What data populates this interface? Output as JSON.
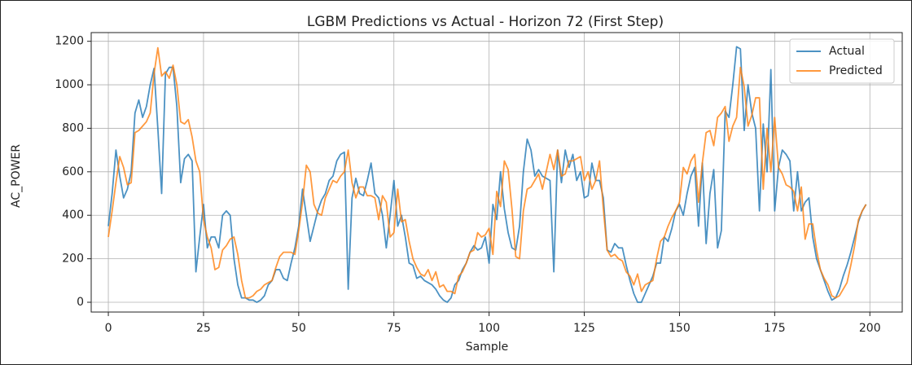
{
  "chart_data": {
    "type": "line",
    "title": "LGBM Predictions vs Actual - Horizon 72 (First Step)",
    "x_label": "Sample",
    "y_label": "AC_POWER",
    "x": [
      0,
      1,
      2,
      3,
      4,
      5,
      6,
      7,
      8,
      9,
      10,
      11,
      12,
      13,
      14,
      15,
      16,
      17,
      18,
      19,
      20,
      21,
      22,
      23,
      24,
      25,
      26,
      27,
      28,
      29,
      30,
      31,
      32,
      33,
      34,
      35,
      36,
      37,
      38,
      39,
      40,
      41,
      42,
      43,
      44,
      45,
      46,
      47,
      48,
      49,
      50,
      51,
      52,
      53,
      54,
      55,
      56,
      57,
      58,
      59,
      60,
      61,
      62,
      63,
      64,
      65,
      66,
      67,
      68,
      69,
      70,
      71,
      72,
      73,
      74,
      75,
      76,
      77,
      78,
      79,
      80,
      81,
      82,
      83,
      84,
      85,
      86,
      87,
      88,
      89,
      90,
      91,
      92,
      93,
      94,
      95,
      96,
      97,
      98,
      99,
      100,
      101,
      102,
      103,
      104,
      105,
      106,
      107,
      108,
      109,
      110,
      111,
      112,
      113,
      114,
      115,
      116,
      117,
      118,
      119,
      120,
      121,
      122,
      123,
      124,
      125,
      126,
      127,
      128,
      129,
      130,
      131,
      132,
      133,
      134,
      135,
      136,
      137,
      138,
      139,
      140,
      141,
      142,
      143,
      144,
      145,
      146,
      147,
      148,
      149,
      150,
      151,
      152,
      153,
      154,
      155,
      156,
      157,
      158,
      159,
      160,
      161,
      162,
      163,
      164,
      165,
      166,
      167,
      168,
      169,
      170,
      171,
      172,
      173,
      174,
      175,
      176,
      177,
      178,
      179,
      180,
      181,
      182,
      183,
      184,
      185,
      186,
      187,
      188,
      189,
      190,
      191,
      192,
      193,
      194,
      195,
      196,
      197,
      198,
      199
    ],
    "series": [
      {
        "name": "Actual",
        "color": "#1f77b4",
        "values": [
          350,
          500,
          700,
          580,
          480,
          520,
          600,
          870,
          930,
          850,
          900,
          1000,
          1075,
          800,
          500,
          1050,
          1080,
          1080,
          900,
          550,
          660,
          680,
          650,
          140,
          300,
          450,
          250,
          300,
          300,
          250,
          400,
          420,
          400,
          200,
          80,
          20,
          20,
          10,
          10,
          0,
          10,
          30,
          80,
          100,
          150,
          150,
          110,
          100,
          180,
          250,
          350,
          520,
          400,
          280,
          350,
          420,
          470,
          500,
          560,
          580,
          650,
          680,
          690,
          60,
          480,
          570,
          500,
          490,
          560,
          640,
          500,
          480,
          400,
          250,
          400,
          560,
          350,
          400,
          300,
          180,
          170,
          110,
          120,
          100,
          90,
          80,
          60,
          30,
          10,
          0,
          20,
          80,
          100,
          150,
          180,
          230,
          260,
          240,
          250,
          300,
          180,
          450,
          380,
          600,
          430,
          320,
          250,
          240,
          350,
          600,
          750,
          700,
          580,
          610,
          580,
          570,
          560,
          140,
          700,
          550,
          700,
          620,
          680,
          560,
          600,
          480,
          490,
          640,
          560,
          560,
          480,
          240,
          230,
          270,
          250,
          250,
          170,
          100,
          40,
          0,
          0,
          40,
          80,
          120,
          180,
          180,
          300,
          280,
          340,
          420,
          450,
          400,
          500,
          580,
          620,
          350,
          640,
          270,
          500,
          610,
          250,
          330,
          880,
          850,
          1000,
          1175,
          1165,
          790,
          1000,
          870,
          800,
          420,
          820,
          600,
          1070,
          420,
          620,
          700,
          680,
          650,
          420,
          600,
          420,
          460,
          480,
          300,
          200,
          150,
          100,
          50,
          10,
          20,
          60,
          120,
          170,
          230,
          300,
          370,
          420,
          450
        ]
      },
      {
        "name": "Predicted",
        "color": "#ff7f0e",
        "values": [
          300,
          420,
          550,
          670,
          620,
          540,
          550,
          780,
          790,
          810,
          830,
          870,
          1050,
          1170,
          1040,
          1060,
          1030,
          1090,
          1000,
          830,
          820,
          840,
          760,
          650,
          600,
          380,
          300,
          250,
          150,
          160,
          240,
          260,
          290,
          300,
          220,
          100,
          20,
          20,
          30,
          50,
          60,
          80,
          90,
          100,
          160,
          210,
          230,
          230,
          230,
          220,
          330,
          460,
          630,
          600,
          450,
          410,
          400,
          480,
          520,
          560,
          550,
          580,
          600,
          700,
          550,
          480,
          530,
          530,
          490,
          490,
          480,
          380,
          490,
          460,
          300,
          320,
          520,
          370,
          380,
          280,
          200,
          160,
          130,
          120,
          150,
          100,
          140,
          70,
          80,
          50,
          50,
          40,
          120,
          140,
          180,
          230,
          240,
          320,
          300,
          310,
          340,
          220,
          510,
          440,
          650,
          610,
          430,
          210,
          200,
          420,
          520,
          530,
          560,
          590,
          520,
          600,
          680,
          610,
          700,
          580,
          590,
          650,
          650,
          660,
          670,
          560,
          600,
          520,
          560,
          650,
          430,
          240,
          210,
          220,
          200,
          190,
          140,
          120,
          80,
          130,
          50,
          80,
          90,
          100,
          200,
          280,
          300,
          350,
          390,
          420,
          460,
          620,
          590,
          650,
          680,
          460,
          640,
          780,
          790,
          720,
          850,
          870,
          900,
          740,
          810,
          850,
          1080,
          990,
          810,
          860,
          940,
          940,
          520,
          800,
          600,
          850,
          620,
          590,
          540,
          530,
          510,
          420,
          530,
          290,
          360,
          360,
          240,
          150,
          110,
          80,
          30,
          20,
          30,
          60,
          90,
          170,
          260,
          380,
          420,
          450
        ]
      }
    ],
    "xlim": [
      -4.5,
      208.5
    ],
    "xticks": [
      0,
      25,
      50,
      75,
      100,
      125,
      150,
      175,
      200
    ],
    "ylim": [
      -45,
      1240
    ],
    "yticks": [
      0,
      200,
      400,
      600,
      800,
      1000,
      1200
    ],
    "grid": true,
    "legend": "upper right"
  }
}
